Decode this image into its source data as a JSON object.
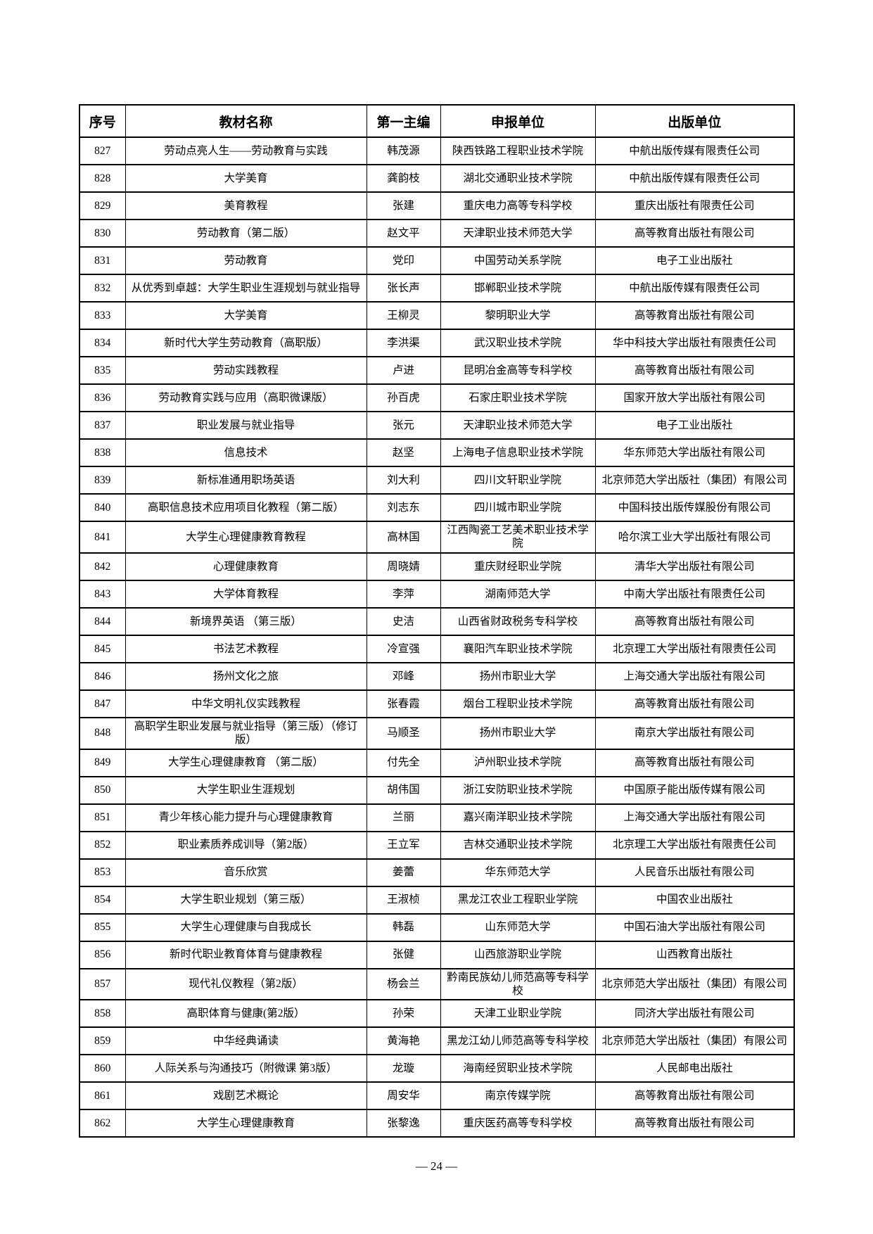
{
  "page": {
    "footer_page_number": "— 24 —",
    "background_color": "#ffffff",
    "text_color": "#000000",
    "border_color": "#000000"
  },
  "table": {
    "columns": [
      "序号",
      "教材名称",
      "第一主编",
      "申报单位",
      "出版单位"
    ],
    "rows": [
      {
        "num": "827",
        "title": "劳动点亮人生——劳动教育与实践",
        "editor": "韩茂源",
        "applicant": "陕西铁路工程职业技术学院",
        "publisher": "中航出版传媒有限责任公司"
      },
      {
        "num": "828",
        "title": "大学美育",
        "editor": "龚韵枝",
        "applicant": "湖北交通职业技术学院",
        "publisher": "中航出版传媒有限责任公司"
      },
      {
        "num": "829",
        "title": "美育教程",
        "editor": "张建",
        "applicant": "重庆电力高等专科学校",
        "publisher": "重庆出版社有限责任公司"
      },
      {
        "num": "830",
        "title": "劳动教育（第二版）",
        "editor": "赵文平",
        "applicant": "天津职业技术师范大学",
        "publisher": "高等教育出版社有限公司"
      },
      {
        "num": "831",
        "title": "劳动教育",
        "editor": "党印",
        "applicant": "中国劳动关系学院",
        "publisher": "电子工业出版社"
      },
      {
        "num": "832",
        "title": "从优秀到卓越：大学生职业生涯规划与就业指导",
        "editor": "张长声",
        "applicant": "邯郸职业技术学院",
        "publisher": "中航出版传媒有限责任公司"
      },
      {
        "num": "833",
        "title": "大学美育",
        "editor": "王柳灵",
        "applicant": "黎明职业大学",
        "publisher": "高等教育出版社有限公司"
      },
      {
        "num": "834",
        "title": "新时代大学生劳动教育（高职版）",
        "editor": "李洪渠",
        "applicant": "武汉职业技术学院",
        "publisher": "华中科技大学出版社有限责任公司"
      },
      {
        "num": "835",
        "title": "劳动实践教程",
        "editor": "卢进",
        "applicant": "昆明冶金高等专科学校",
        "publisher": "高等教育出版社有限公司"
      },
      {
        "num": "836",
        "title": "劳动教育实践与应用（高职微课版）",
        "editor": "孙百虎",
        "applicant": "石家庄职业技术学院",
        "publisher": "国家开放大学出版社有限公司"
      },
      {
        "num": "837",
        "title": "职业发展与就业指导",
        "editor": "张元",
        "applicant": "天津职业技术师范大学",
        "publisher": "电子工业出版社"
      },
      {
        "num": "838",
        "title": "信息技术",
        "editor": "赵坚",
        "applicant": "上海电子信息职业技术学院",
        "publisher": "华东师范大学出版社有限公司"
      },
      {
        "num": "839",
        "title": "新标准通用职场英语",
        "editor": "刘大利",
        "applicant": "四川文轩职业学院",
        "publisher": "北京师范大学出版社（集团）有限公司"
      },
      {
        "num": "840",
        "title": "高职信息技术应用项目化教程（第二版）",
        "editor": "刘志东",
        "applicant": "四川城市职业学院",
        "publisher": "中国科技出版传媒股份有限公司"
      },
      {
        "num": "841",
        "title": "大学生心理健康教育教程",
        "editor": "高林国",
        "applicant": "江西陶瓷工艺美术职业技术学院",
        "publisher": "哈尔滨工业大学出版社有限公司"
      },
      {
        "num": "842",
        "title": "心理健康教育",
        "editor": "周晓婧",
        "applicant": "重庆财经职业学院",
        "publisher": "清华大学出版社有限公司"
      },
      {
        "num": "843",
        "title": "大学体育教程",
        "editor": "李萍",
        "applicant": "湖南师范大学",
        "publisher": "中南大学出版社有限责任公司"
      },
      {
        "num": "844",
        "title": "新境界英语 （第三版）",
        "editor": "史洁",
        "applicant": "山西省财政税务专科学校",
        "publisher": "高等教育出版社有限公司"
      },
      {
        "num": "845",
        "title": "书法艺术教程",
        "editor": "冷宣强",
        "applicant": "襄阳汽车职业技术学院",
        "publisher": "北京理工大学出版社有限责任公司"
      },
      {
        "num": "846",
        "title": "扬州文化之旅",
        "editor": "邓峰",
        "applicant": "扬州市职业大学",
        "publisher": "上海交通大学出版社有限公司"
      },
      {
        "num": "847",
        "title": "中华文明礼仪实践教程",
        "editor": "张春霞",
        "applicant": "烟台工程职业技术学院",
        "publisher": "高等教育出版社有限公司"
      },
      {
        "num": "848",
        "title": "高职学生职业发展与就业指导（第三版）（修订版）",
        "editor": "马顺圣",
        "applicant": "扬州市职业大学",
        "publisher": "南京大学出版社有限公司"
      },
      {
        "num": "849",
        "title": "大学生心理健康教育 （第二版）",
        "editor": "付先全",
        "applicant": "泸州职业技术学院",
        "publisher": "高等教育出版社有限公司"
      },
      {
        "num": "850",
        "title": "大学生职业生涯规划",
        "editor": "胡伟国",
        "applicant": "浙江安防职业技术学院",
        "publisher": "中国原子能出版传媒有限公司"
      },
      {
        "num": "851",
        "title": "青少年核心能力提升与心理健康教育",
        "editor": "兰丽",
        "applicant": "嘉兴南洋职业技术学院",
        "publisher": "上海交通大学出版社有限公司"
      },
      {
        "num": "852",
        "title": "职业素质养成训导（第2版）",
        "editor": "王立军",
        "applicant": "吉林交通职业技术学院",
        "publisher": "北京理工大学出版社有限责任公司"
      },
      {
        "num": "853",
        "title": "音乐欣赏",
        "editor": "姜蕾",
        "applicant": "华东师范大学",
        "publisher": "人民音乐出版社有限公司"
      },
      {
        "num": "854",
        "title": "大学生职业规划（第三版）",
        "editor": "王淑桢",
        "applicant": "黑龙江农业工程职业学院",
        "publisher": "中国农业出版社"
      },
      {
        "num": "855",
        "title": "大学生心理健康与自我成长",
        "editor": "韩磊",
        "applicant": "山东师范大学",
        "publisher": "中国石油大学出版社有限公司"
      },
      {
        "num": "856",
        "title": "新时代职业教育体育与健康教程",
        "editor": "张健",
        "applicant": "山西旅游职业学院",
        "publisher": "山西教育出版社"
      },
      {
        "num": "857",
        "title": "现代礼仪教程（第2版）",
        "editor": "杨会兰",
        "applicant": "黔南民族幼儿师范高等专科学校",
        "publisher": "北京师范大学出版社（集团）有限公司"
      },
      {
        "num": "858",
        "title": "高职体育与健康(第2版）",
        "editor": "孙荣",
        "applicant": "天津工业职业学院",
        "publisher": "同济大学出版社有限公司"
      },
      {
        "num": "859",
        "title": "中华经典诵读",
        "editor": "黄海艳",
        "applicant": "黑龙江幼儿师范高等专科学校",
        "publisher": "北京师范大学出版社（集团）有限公司"
      },
      {
        "num": "860",
        "title": "人际关系与沟通技巧（附微课 第3版）",
        "editor": "龙璇",
        "applicant": "海南经贸职业技术学院",
        "publisher": "人民邮电出版社"
      },
      {
        "num": "861",
        "title": "戏剧艺术概论",
        "editor": "周安华",
        "applicant": "南京传媒学院",
        "publisher": "高等教育出版社有限公司"
      },
      {
        "num": "862",
        "title": "大学生心理健康教育",
        "editor": "张黎逸",
        "applicant": "重庆医药高等专科学校",
        "publisher": "高等教育出版社有限公司"
      }
    ]
  }
}
